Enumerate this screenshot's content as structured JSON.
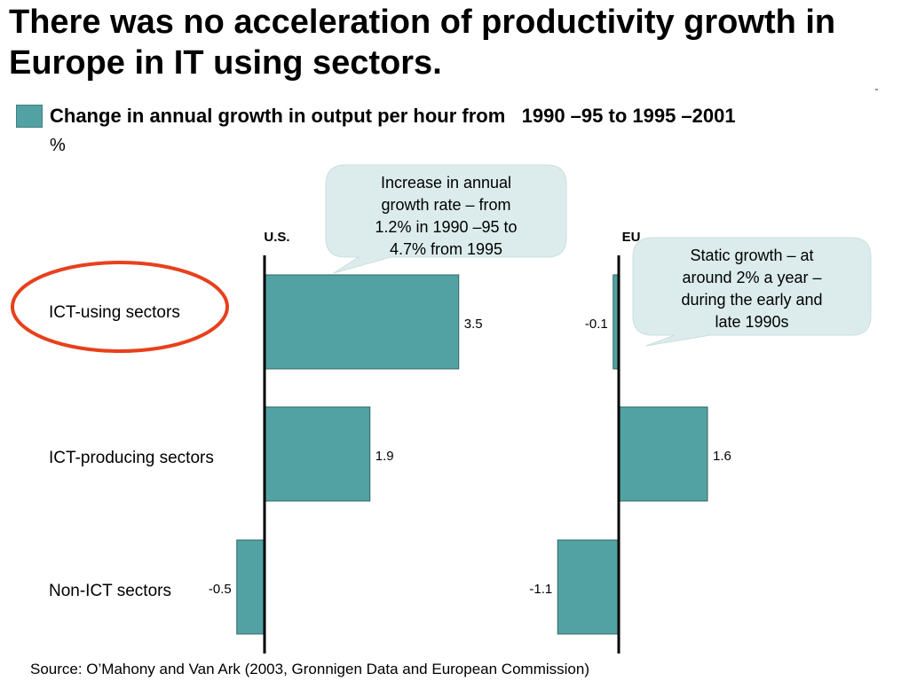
{
  "title": "There was no acceleration of productivity growth in Europe in IT using sectors.",
  "subtitle": "Change in annual growth in output per hour from   1990 –95 to 1995 –2001",
  "unit": "%",
  "source": "Source: O’Mahony and Van Ark (2003, Gronnigen Data and European Commission)",
  "colors": {
    "bar": "#53a2a3",
    "bar_stroke": "#2f6566",
    "highlight_ring": "#e8401c",
    "callout_fill": "#dcecec"
  },
  "callouts": {
    "us": [
      "Increase in annual",
      "growth rate  – from",
      "1.2% in 1990 –95 to",
      "4.7% from 1995"
    ],
    "eu": [
      "Static growth  – at",
      "around 2% a year  –",
      "during the early and",
      "late 1990s"
    ]
  },
  "chart_data": {
    "type": "bar",
    "orientation": "horizontal",
    "categories": [
      "ICT-using sectors",
      "ICT-producing sectors",
      "Non-ICT sectors"
    ],
    "highlighted_category": "ICT-using sectors",
    "series": [
      {
        "name": "U.S.",
        "values": [
          3.5,
          1.9,
          -0.5
        ],
        "labels": [
          "3.5",
          "1.9",
          "-0.5"
        ]
      },
      {
        "name": "EU",
        "values": [
          -0.1,
          1.6,
          -1.1
        ],
        "labels": [
          "-0.1",
          "1.6",
          "-1.1"
        ]
      }
    ],
    "legend": "top-left",
    "grid": false
  }
}
